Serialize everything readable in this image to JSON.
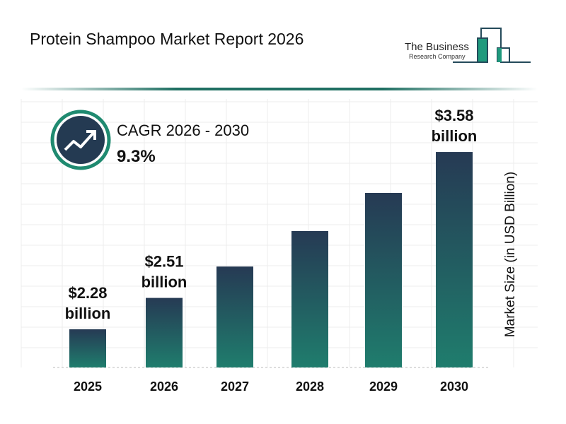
{
  "title": "Protein Shampoo Market Report 2026",
  "logo": {
    "line1": "The Business",
    "line2": "Research Company"
  },
  "cagr": {
    "label": "CAGR 2026 - 2030",
    "value": "9.3%",
    "icon": "trend-up-arrow-icon"
  },
  "colors": {
    "bar_top": "#263a54",
    "bar_bottom": "#1f7d6d",
    "accent": "#1f8a70",
    "icon_bg": "#243a52"
  },
  "chart_data": {
    "type": "bar",
    "title": "Protein Shampoo Market Report 2026",
    "ylabel": "Market Size (in USD Billion)",
    "categories": [
      "2025",
      "2026",
      "2027",
      "2028",
      "2029",
      "2030"
    ],
    "values": [
      2.28,
      2.51,
      2.74,
      3.0,
      3.28,
      3.58
    ],
    "data_labels": [
      {
        "index": 0,
        "line1": "$2.28",
        "line2": "billion"
      },
      {
        "index": 1,
        "line1": "$2.51",
        "line2": "billion"
      },
      {
        "index": 5,
        "line1": "$3.58",
        "line2": "billion"
      }
    ],
    "grid": true
  }
}
